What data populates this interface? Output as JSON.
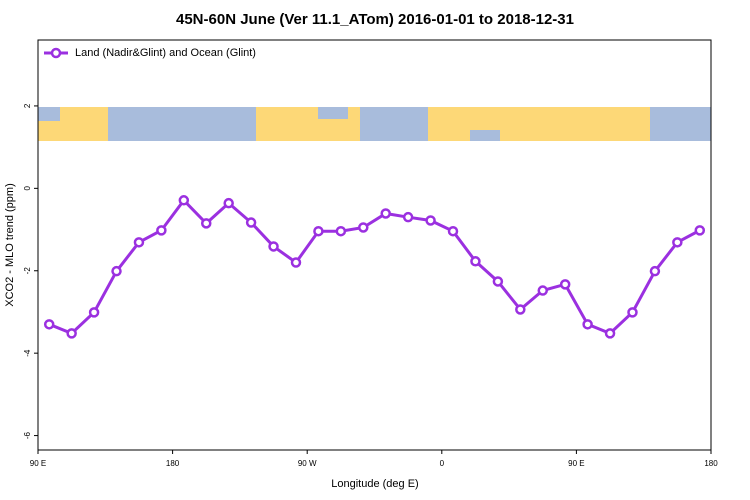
{
  "chart_data": {
    "type": "line",
    "title": "45N-60N June (Ver 11.1_ATom)   2016-01-01 to 2018-12-31",
    "xlabel": "Longitude (deg E)",
    "ylabel": "XCO2 - MLO trend (ppm)",
    "x": [
      97.5,
      112.5,
      127.5,
      142.5,
      157.5,
      172.5,
      187.5,
      202.5,
      217.5,
      232.5,
      247.5,
      262.5,
      277.5,
      292.5,
      307.5,
      322.5,
      337.5,
      352.5,
      367.5,
      382.5,
      397.5,
      412.5,
      427.5,
      442.5,
      457.5,
      472.5,
      487.5,
      502.5,
      517.5,
      532.5
    ],
    "series": [
      {
        "name": "Land (Nadir&Glint) and Ocean (Glint)",
        "color": "#9b30e0",
        "values": [
          -3.3,
          -3.52,
          -3.01,
          -2.01,
          -1.31,
          -1.02,
          -0.29,
          -0.85,
          -0.36,
          -0.83,
          -1.41,
          -1.8,
          -1.04,
          -1.04,
          -0.95,
          -0.61,
          -0.7,
          -0.78,
          -1.04,
          -1.77,
          -2.26,
          -2.94,
          -2.48,
          -2.33,
          -3.3,
          -3.52,
          -3.01,
          -2.01,
          -1.31,
          -1.02
        ]
      }
    ],
    "xlim": [
      90,
      540
    ],
    "xticks": [
      {
        "value": 90,
        "label": "90 E"
      },
      {
        "value": 180,
        "label": "180"
      },
      {
        "value": 270,
        "label": "90 W"
      },
      {
        "value": 360,
        "label": "0"
      },
      {
        "value": 450,
        "label": "90 E"
      },
      {
        "value": 540,
        "label": "180"
      }
    ],
    "ylim": [
      -6.35,
      3.6
    ],
    "yticks": [
      2,
      0,
      -2,
      -4,
      -6
    ],
    "grid": false,
    "legend": "upper left"
  }
}
